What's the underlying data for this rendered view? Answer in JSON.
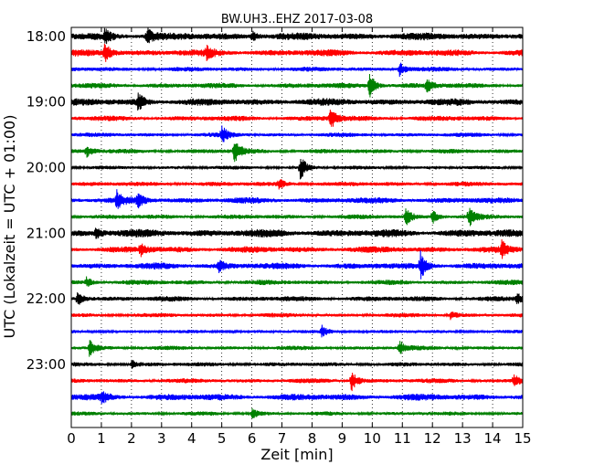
{
  "chart_data": {
    "type": "line",
    "title": "BW.UH3..EHZ 2017-03-08",
    "xlabel": "Zeit  [min]",
    "ylabel": "UTC (Lokalzeit = UTC + 01:00)",
    "xlim": [
      0,
      15
    ],
    "x_ticks": [
      0,
      1,
      2,
      3,
      4,
      5,
      6,
      7,
      8,
      9,
      10,
      11,
      12,
      13,
      14,
      15
    ],
    "x_tick_labels": [
      "0",
      "1",
      "2",
      "3",
      "4",
      "5",
      "6",
      "7",
      "8",
      "9",
      "10",
      "11",
      "12",
      "13",
      "14",
      "15"
    ],
    "y_tick_labels": [
      "18:00",
      "19:00",
      "20:00",
      "21:00",
      "22:00",
      "23:00"
    ],
    "traces_per_hour": 4,
    "minutes_per_trace": 15,
    "first_trace_time": "18:00",
    "trace_count": 24,
    "color_cycle": [
      "#000000",
      "#ff0000",
      "#0000ff",
      "#008000"
    ],
    "grid": "vertical dotted lines at each minute",
    "series": [
      {
        "start": "18:00",
        "color": "#000000",
        "amplitude": 0.42,
        "events": [
          {
            "t": 1.1,
            "a": 0.8
          },
          {
            "t": 2.5,
            "a": 1.0
          },
          {
            "t": 6.0,
            "a": 0.6
          }
        ]
      },
      {
        "start": "18:15",
        "color": "#ff0000",
        "amplitude": 0.38,
        "events": [
          {
            "t": 1.1,
            "a": 1.2
          },
          {
            "t": 4.5,
            "a": 0.6
          }
        ]
      },
      {
        "start": "18:30",
        "color": "#0000ff",
        "amplitude": 0.26,
        "events": [
          {
            "t": 10.9,
            "a": 0.8
          }
        ]
      },
      {
        "start": "18:45",
        "color": "#008000",
        "amplitude": 0.3,
        "events": [
          {
            "t": 9.9,
            "a": 1.5
          },
          {
            "t": 11.8,
            "a": 0.7
          }
        ]
      },
      {
        "start": "19:00",
        "color": "#000000",
        "amplitude": 0.4,
        "events": [
          {
            "t": 2.2,
            "a": 1.1
          }
        ]
      },
      {
        "start": "19:15",
        "color": "#ff0000",
        "amplitude": 0.3,
        "events": [
          {
            "t": 8.6,
            "a": 1.3
          }
        ]
      },
      {
        "start": "19:30",
        "color": "#0000ff",
        "amplitude": 0.24,
        "events": [
          {
            "t": 5.0,
            "a": 0.9
          }
        ]
      },
      {
        "start": "19:45",
        "color": "#008000",
        "amplitude": 0.26,
        "events": [
          {
            "t": 5.4,
            "a": 1.6
          },
          {
            "t": 0.5,
            "a": 0.6
          }
        ]
      },
      {
        "start": "20:00",
        "color": "#000000",
        "amplitude": 0.2,
        "events": [
          {
            "t": 7.6,
            "a": 1.6
          }
        ]
      },
      {
        "start": "20:15",
        "color": "#ff0000",
        "amplitude": 0.26,
        "events": [
          {
            "t": 6.9,
            "a": 0.6
          }
        ]
      },
      {
        "start": "20:30",
        "color": "#0000ff",
        "amplitude": 0.34,
        "events": [
          {
            "t": 1.5,
            "a": 1.0
          },
          {
            "t": 2.2,
            "a": 0.7
          }
        ]
      },
      {
        "start": "20:45",
        "color": "#008000",
        "amplitude": 0.26,
        "events": [
          {
            "t": 11.1,
            "a": 1.0
          },
          {
            "t": 13.2,
            "a": 1.1
          },
          {
            "t": 12.0,
            "a": 0.8
          }
        ]
      },
      {
        "start": "21:00",
        "color": "#000000",
        "amplitude": 0.44,
        "events": [
          {
            "t": 0.8,
            "a": 0.6
          }
        ]
      },
      {
        "start": "21:15",
        "color": "#ff0000",
        "amplitude": 0.36,
        "events": [
          {
            "t": 2.3,
            "a": 0.7
          },
          {
            "t": 14.3,
            "a": 0.8
          }
        ]
      },
      {
        "start": "21:30",
        "color": "#0000ff",
        "amplitude": 0.36,
        "events": [
          {
            "t": 11.6,
            "a": 1.5
          },
          {
            "t": 4.9,
            "a": 0.6
          }
        ]
      },
      {
        "start": "21:45",
        "color": "#008000",
        "amplitude": 0.28,
        "events": [
          {
            "t": 0.5,
            "a": 0.6
          }
        ]
      },
      {
        "start": "22:00",
        "color": "#000000",
        "amplitude": 0.3,
        "events": [
          {
            "t": 0.2,
            "a": 1.0
          },
          {
            "t": 14.8,
            "a": 0.6
          }
        ]
      },
      {
        "start": "22:15",
        "color": "#ff0000",
        "amplitude": 0.24,
        "events": [
          {
            "t": 12.6,
            "a": 0.5
          }
        ]
      },
      {
        "start": "22:30",
        "color": "#0000ff",
        "amplitude": 0.2,
        "events": [
          {
            "t": 8.3,
            "a": 0.7
          }
        ]
      },
      {
        "start": "22:45",
        "color": "#008000",
        "amplitude": 0.24,
        "events": [
          {
            "t": 0.6,
            "a": 0.9
          },
          {
            "t": 10.9,
            "a": 0.8
          }
        ]
      },
      {
        "start": "23:00",
        "color": "#000000",
        "amplitude": 0.24,
        "events": [
          {
            "t": 2.0,
            "a": 0.5
          }
        ]
      },
      {
        "start": "23:15",
        "color": "#ff0000",
        "amplitude": 0.26,
        "events": [
          {
            "t": 9.3,
            "a": 1.2
          },
          {
            "t": 14.7,
            "a": 0.7
          }
        ]
      },
      {
        "start": "23:30",
        "color": "#0000ff",
        "amplitude": 0.38,
        "events": [
          {
            "t": 1.0,
            "a": 0.6
          }
        ]
      },
      {
        "start": "23:45",
        "color": "#008000",
        "amplitude": 0.22,
        "events": [
          {
            "t": 6.0,
            "a": 0.6
          }
        ]
      }
    ]
  }
}
